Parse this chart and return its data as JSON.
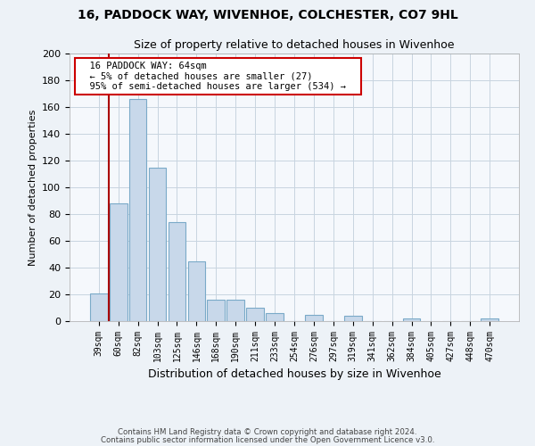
{
  "title1": "16, PADDOCK WAY, WIVENHOE, COLCHESTER, CO7 9HL",
  "title2": "Size of property relative to detached houses in Wivenhoe",
  "xlabel": "Distribution of detached houses by size in Wivenhoe",
  "ylabel": "Number of detached properties",
  "bar_labels": [
    "39sqm",
    "60sqm",
    "82sqm",
    "103sqm",
    "125sqm",
    "146sqm",
    "168sqm",
    "190sqm",
    "211sqm",
    "233sqm",
    "254sqm",
    "276sqm",
    "297sqm",
    "319sqm",
    "341sqm",
    "362sqm",
    "384sqm",
    "405sqm",
    "427sqm",
    "448sqm",
    "470sqm"
  ],
  "bar_values": [
    21,
    88,
    166,
    115,
    74,
    45,
    16,
    16,
    10,
    6,
    0,
    5,
    0,
    4,
    0,
    0,
    2,
    0,
    0,
    0,
    2
  ],
  "bar_color": "#c8d8ea",
  "bar_edge_color": "#7aaac8",
  "vline_x_idx": 0,
  "vline_color": "#aa0000",
  "ylim": [
    0,
    200
  ],
  "yticks": [
    0,
    20,
    40,
    60,
    80,
    100,
    120,
    140,
    160,
    180,
    200
  ],
  "annotation_box_text1": "16 PADDOCK WAY: 64sqm",
  "annotation_box_text2": "← 5% of detached houses are smaller (27)",
  "annotation_box_text3": "95% of semi-detached houses are larger (534) →",
  "annotation_box_edge_color": "#cc0000",
  "annotation_box_facecolor": "#ffffff",
  "footer1": "Contains HM Land Registry data © Crown copyright and database right 2024.",
  "footer2": "Contains public sector information licensed under the Open Government Licence v3.0.",
  "bg_color": "#edf2f7",
  "plot_bg_color": "#f5f8fc",
  "grid_color": "#c8d4e0"
}
